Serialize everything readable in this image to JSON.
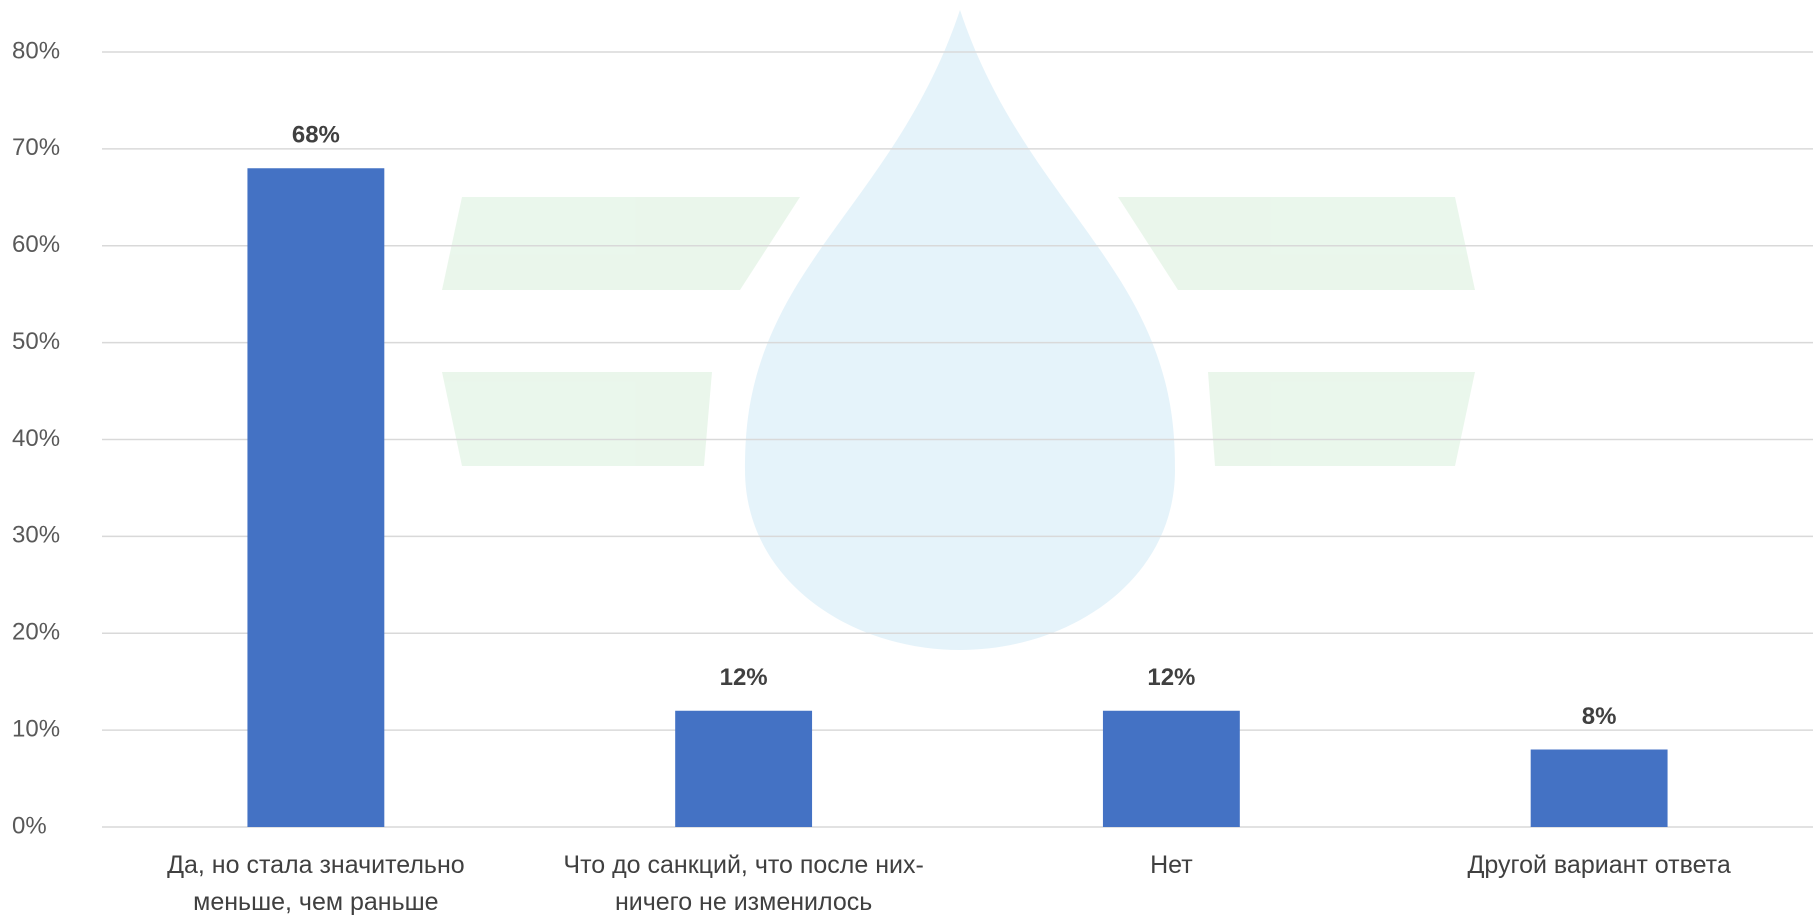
{
  "chart_data": {
    "type": "bar",
    "categories": [
      "Да, но стала значительно\nменьше, чем раньше",
      "Что до санкций, что после них-\nничего не изменилось",
      "Нет",
      "Другой вариант ответа"
    ],
    "values": [
      68,
      12,
      12,
      8
    ],
    "value_labels": [
      "68%",
      "12%",
      "12%",
      "8%"
    ],
    "color": "#4472c4",
    "ylim": [
      0,
      80
    ],
    "yticks": [
      {
        "value": 0,
        "label": "0%"
      },
      {
        "value": 10,
        "label": "10%"
      },
      {
        "value": 20,
        "label": "20%"
      },
      {
        "value": 30,
        "label": "30%"
      },
      {
        "value": 40,
        "label": "40%"
      },
      {
        "value": 50,
        "label": "50%"
      },
      {
        "value": 60,
        "label": "60%"
      },
      {
        "value": 70,
        "label": "70%"
      },
      {
        "value": 80,
        "label": "80%"
      }
    ],
    "grid": true
  }
}
